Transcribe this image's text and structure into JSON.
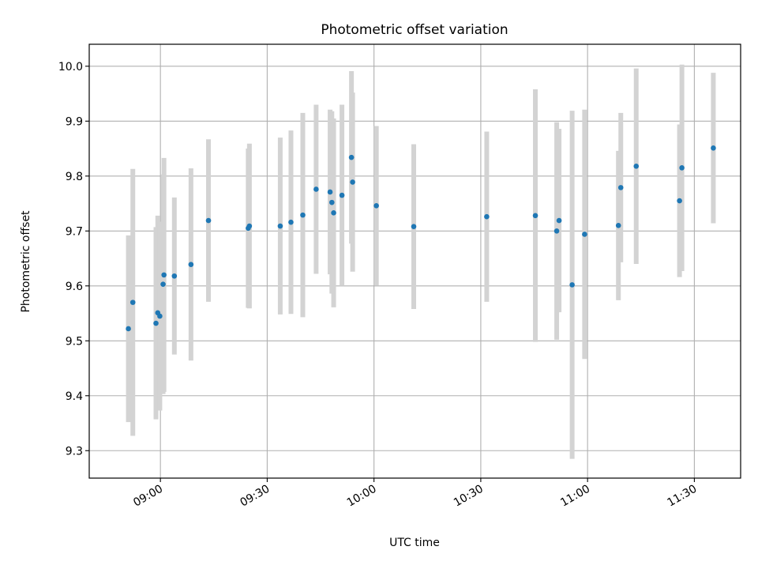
{
  "chart_data": {
    "type": "scatter",
    "title": "Photometric offset variation",
    "xlabel": "UTC time",
    "ylabel": "Photometric offset",
    "xlim": [
      "08:40",
      "11:43"
    ],
    "ylim": [
      9.25,
      10.04
    ],
    "x_ticks": [
      "09:00",
      "09:30",
      "10:00",
      "10:30",
      "11:00",
      "11:30"
    ],
    "y_ticks": [
      9.3,
      9.4,
      9.5,
      9.6,
      9.7,
      9.8,
      9.9,
      10.0
    ],
    "grid": true,
    "colors": {
      "points": "#1f77b4",
      "error_bars": "#d3d3d3",
      "grid": "#b0b0b0"
    },
    "points": [
      {
        "x": "08:51:00",
        "y": 9.522,
        "yerr": 0.17
      },
      {
        "x": "08:52:15",
        "y": 9.57,
        "yerr": 0.243
      },
      {
        "x": "08:58:45",
        "y": 9.532,
        "yerr": 0.175
      },
      {
        "x": "08:59:15",
        "y": 9.551,
        "yerr": 0.177
      },
      {
        "x": "08:59:50",
        "y": 9.545,
        "yerr": 0.172
      },
      {
        "x": "09:00:45",
        "y": 9.603,
        "yerr": 0.2
      },
      {
        "x": "09:01:00",
        "y": 9.62,
        "yerr": 0.213
      },
      {
        "x": "09:03:55",
        "y": 9.618,
        "yerr": 0.143
      },
      {
        "x": "09:08:35",
        "y": 9.639,
        "yerr": 0.175
      },
      {
        "x": "09:13:30",
        "y": 9.719,
        "yerr": 0.148
      },
      {
        "x": "09:24:40",
        "y": 9.705,
        "yerr": 0.145
      },
      {
        "x": "09:25:00",
        "y": 9.709,
        "yerr": 0.15
      },
      {
        "x": "09:33:40",
        "y": 9.709,
        "yerr": 0.161
      },
      {
        "x": "09:36:40",
        "y": 9.716,
        "yerr": 0.167
      },
      {
        "x": "09:40:00",
        "y": 9.729,
        "yerr": 0.186
      },
      {
        "x": "09:43:45",
        "y": 9.776,
        "yerr": 0.154
      },
      {
        "x": "09:47:40",
        "y": 9.771,
        "yerr": 0.15
      },
      {
        "x": "09:48:10",
        "y": 9.752,
        "yerr": 0.166
      },
      {
        "x": "09:48:40",
        "y": 9.733,
        "yerr": 0.172
      },
      {
        "x": "09:51:00",
        "y": 9.765,
        "yerr": 0.165
      },
      {
        "x": "09:53:40",
        "y": 9.834,
        "yerr": 0.157
      },
      {
        "x": "09:54:00",
        "y": 9.789,
        "yerr": 0.163
      },
      {
        "x": "10:00:40",
        "y": 9.746,
        "yerr": 0.145
      },
      {
        "x": "10:11:10",
        "y": 9.708,
        "yerr": 0.15
      },
      {
        "x": "10:31:40",
        "y": 9.726,
        "yerr": 0.155
      },
      {
        "x": "10:45:20",
        "y": 9.728,
        "yerr": 0.23
      },
      {
        "x": "10:51:20",
        "y": 9.7,
        "yerr": 0.198
      },
      {
        "x": "10:52:00",
        "y": 9.719,
        "yerr": 0.167
      },
      {
        "x": "10:55:40",
        "y": 9.602,
        "yerr": 0.317
      },
      {
        "x": "10:59:10",
        "y": 9.694,
        "yerr": 0.227
      },
      {
        "x": "11:08:40",
        "y": 9.71,
        "yerr": 0.136
      },
      {
        "x": "11:09:20",
        "y": 9.779,
        "yerr": 0.136
      },
      {
        "x": "11:13:40",
        "y": 9.818,
        "yerr": 0.178
      },
      {
        "x": "11:25:50",
        "y": 9.755,
        "yerr": 0.139
      },
      {
        "x": "11:26:30",
        "y": 9.815,
        "yerr": 0.188
      },
      {
        "x": "11:35:20",
        "y": 9.851,
        "yerr": 0.137
      }
    ]
  }
}
